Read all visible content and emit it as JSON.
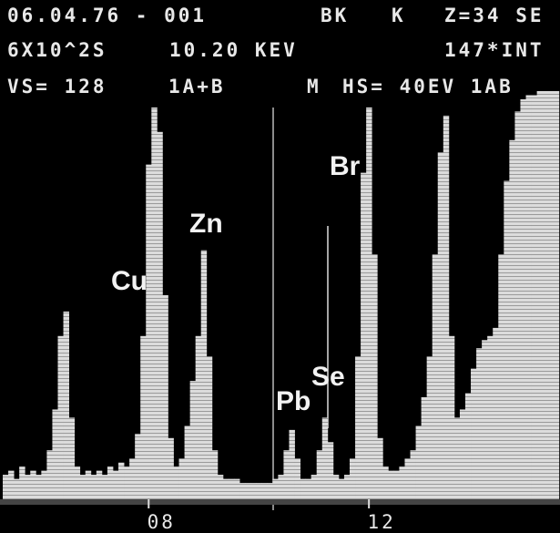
{
  "chart_data": {
    "type": "bar",
    "header": [
      [
        "06.04.76 - 001",
        "BK",
        "K",
        "Z=34 SE"
      ],
      [
        "6X10^2S",
        "10.20 KEV",
        "147*INT"
      ],
      [
        "VS= 128",
        "1A+B",
        "M",
        "HS= 40EV 1AB"
      ]
    ],
    "annotations": [
      "Cu",
      "Zn",
      "Br",
      "Pb",
      "Se"
    ],
    "x": [
      5.4,
      5.5,
      5.6,
      5.7,
      5.8,
      5.9,
      6.0,
      6.1,
      6.2,
      6.3,
      6.4,
      6.5,
      6.6,
      6.7,
      6.8,
      6.9,
      7.0,
      7.1,
      7.2,
      7.3,
      7.4,
      7.5,
      7.6,
      7.7,
      7.8,
      7.9,
      8.0,
      8.1,
      8.2,
      8.3,
      8.4,
      8.5,
      8.6,
      8.7,
      8.8,
      8.9,
      9.0,
      9.1,
      9.2,
      9.3,
      9.4,
      9.5,
      9.6,
      9.7,
      9.8,
      9.9,
      10.0,
      10.1,
      10.2,
      10.3,
      10.4,
      10.5,
      10.6,
      10.7,
      10.8,
      10.9,
      11.0,
      11.1,
      11.2,
      11.3,
      11.4,
      11.5,
      11.6,
      11.7,
      11.8,
      11.9,
      12.0,
      12.1,
      12.2,
      12.3,
      12.4,
      12.5,
      12.6,
      12.7,
      12.8,
      12.9,
      13.0,
      13.1,
      13.2,
      13.3,
      13.4,
      13.5,
      13.6,
      13.7,
      13.8,
      13.9,
      14.0,
      14.1,
      14.2,
      14.3,
      14.4,
      14.5,
      14.6,
      14.7,
      14.8,
      14.9,
      15.0,
      15.1,
      15.2,
      15.3,
      15.4
    ],
    "values": [
      6,
      7,
      5,
      8,
      6,
      7,
      6,
      7,
      12,
      22,
      40,
      46,
      20,
      8,
      6,
      7,
      6,
      7,
      6,
      8,
      7,
      9,
      8,
      10,
      16,
      40,
      82,
      96,
      90,
      50,
      15,
      8,
      10,
      18,
      29,
      40,
      61,
      35,
      12,
      6,
      5,
      5,
      5,
      4,
      4,
      4,
      4,
      4,
      4,
      5,
      6,
      12,
      17,
      10,
      5,
      5,
      6,
      12,
      20,
      14,
      6,
      5,
      6,
      10,
      35,
      80,
      96,
      60,
      15,
      8,
      7,
      7,
      8,
      10,
      12,
      18,
      25,
      35,
      60,
      85,
      94,
      40,
      20,
      22,
      26,
      32,
      37,
      39,
      40,
      42,
      60,
      78,
      88,
      95,
      98,
      99,
      99,
      100,
      100,
      100,
      100
    ],
    "color": "#dcdcdc",
    "xlim": [
      5.3,
      15.47
    ],
    "xticks": [
      {
        "value": 8,
        "label": "08"
      },
      {
        "value": 12,
        "label": "12"
      }
    ],
    "ylim": [
      0,
      100
    ]
  }
}
